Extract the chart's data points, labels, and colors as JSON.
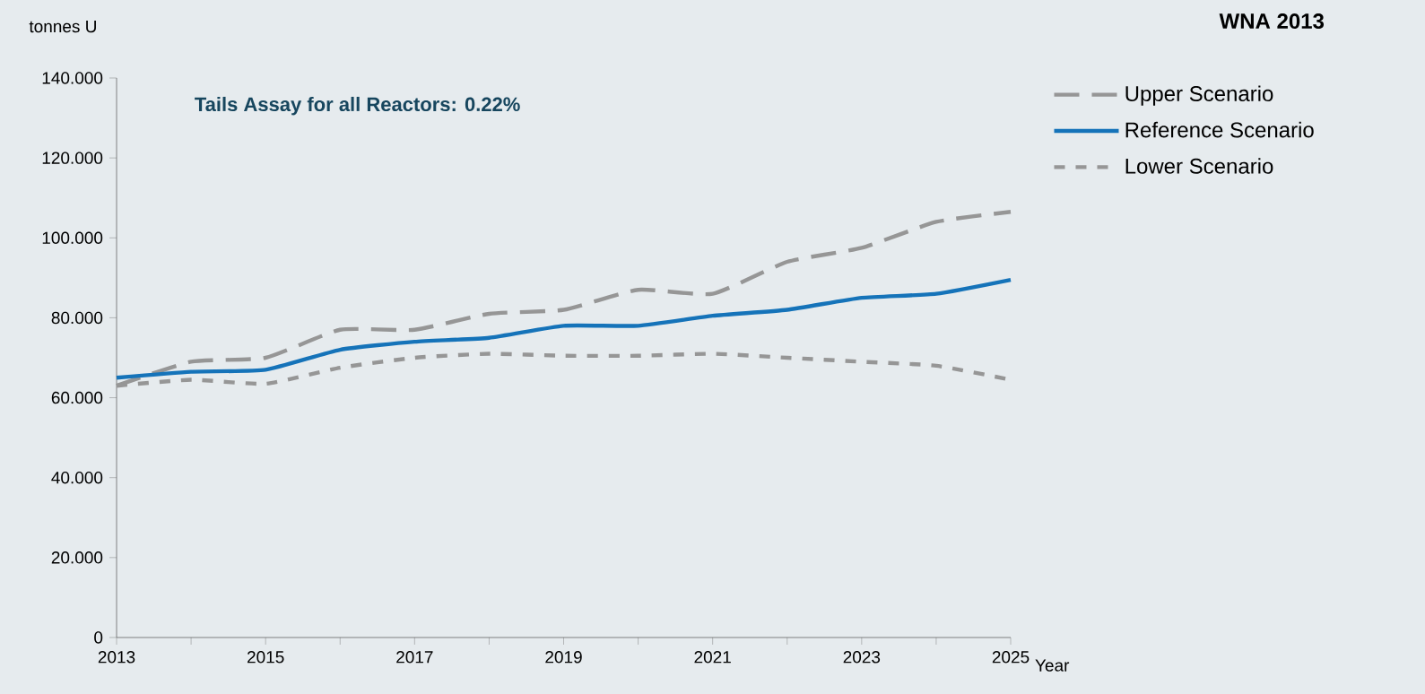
{
  "chart_data": {
    "type": "line",
    "title": "WNA 2013",
    "ylabel": "tonnes U",
    "xlabel": "Year",
    "annotations": [
      "Tails Assay for all Reactors: 0.22%"
    ],
    "x": [
      2013,
      2014,
      2015,
      2016,
      2017,
      2018,
      2019,
      2020,
      2021,
      2022,
      2023,
      2024,
      2025
    ],
    "series": [
      {
        "name": "Upper Scenario",
        "color": "#969696",
        "line_style": "dashed",
        "values": [
          63.0,
          69.0,
          70.0,
          77.0,
          77.0,
          81.0,
          82.0,
          87.0,
          86.0,
          94.0,
          97.5,
          104.0,
          106.5
        ]
      },
      {
        "name": "Reference Scenario",
        "color": "#1573b9",
        "line_style": "solid",
        "values": [
          65.0,
          66.5,
          67.0,
          72.0,
          74.0,
          75.0,
          78.0,
          78.0,
          80.5,
          82.0,
          85.0,
          86.0,
          89.5
        ]
      },
      {
        "name": "Lower Scenario",
        "color": "#969696",
        "line_style": "dotted",
        "values": [
          63.0,
          64.5,
          63.5,
          67.5,
          70.0,
          71.0,
          70.5,
          70.5,
          71.0,
          70.0,
          69.0,
          68.0,
          64.5
        ]
      }
    ],
    "xlim": [
      2013,
      2025
    ],
    "xticks": [
      2013,
      {
        "value": 2014,
        "label": null
      },
      2015,
      {
        "value": 2016,
        "label": null
      },
      2017,
      {
        "value": 2018,
        "label": null
      },
      2019,
      {
        "value": 2020,
        "label": null
      },
      2021,
      {
        "value": 2022,
        "label": null
      },
      2023,
      {
        "value": 2024,
        "label": null
      },
      2025
    ],
    "ylim": [
      0,
      140
    ],
    "yticks": [
      0,
      {
        "value": 20,
        "label": "20.000"
      },
      {
        "value": 40,
        "label": "40.000"
      },
      {
        "value": 60,
        "label": "60.000"
      },
      {
        "value": 80,
        "label": "80.000"
      },
      {
        "value": 100,
        "label": "100.000"
      },
      {
        "value": 120,
        "label": "120.000"
      },
      {
        "value": 140,
        "label": "140.000"
      }
    ],
    "legend": "top right",
    "grid": false,
    "marker": "none"
  }
}
